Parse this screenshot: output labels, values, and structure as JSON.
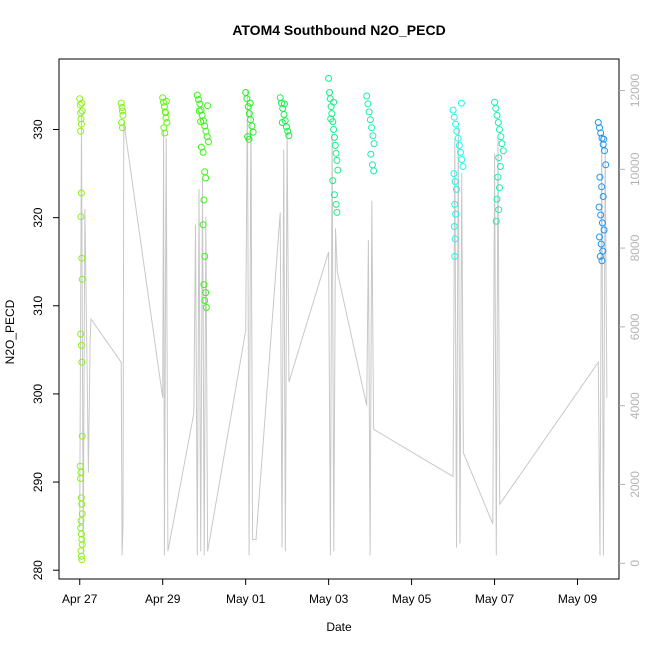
{
  "chart_data": {
    "type": "scatter",
    "title": "ATOM4 Southbound N2O_PECD",
    "xlabel": "Date",
    "ylabel": "N2O_PECD",
    "xlim": [
      "2016-04-26T12:00",
      "2016-05-10T00:00"
    ],
    "ylim": [
      279,
      338
    ],
    "y2lim": [
      -400,
      12800
    ],
    "x_ticks": [
      {
        "label": "Apr 27",
        "date": "2016-04-27T00:00"
      },
      {
        "label": "Apr 29",
        "date": "2016-04-29T00:00"
      },
      {
        "label": "May 01",
        "date": "2016-05-01T00:00"
      },
      {
        "label": "May 03",
        "date": "2016-05-03T00:00"
      },
      {
        "label": "May 05",
        "date": "2016-05-05T00:00"
      },
      {
        "label": "May 07",
        "date": "2016-05-07T00:00"
      },
      {
        "label": "May 09",
        "date": "2016-05-09T00:00"
      }
    ],
    "y_ticks": [
      280,
      290,
      300,
      310,
      320,
      330
    ],
    "y2_ticks": [
      0,
      2000,
      4000,
      6000,
      8000,
      10000,
      12000
    ],
    "grid": false,
    "legend": "none",
    "series": [
      {
        "date": "2016-04-27T00:00",
        "color": "#8ef01c",
        "points": [
          [
            0.0,
            333.5
          ],
          [
            0.01,
            332.8
          ],
          [
            0.02,
            331.9
          ],
          [
            0.03,
            331.2
          ],
          [
            0.04,
            330.6
          ],
          [
            0.05,
            333.0
          ],
          [
            0.06,
            332.1
          ],
          [
            0.02,
            329.8
          ],
          [
            0.04,
            322.8
          ],
          [
            0.03,
            320.1
          ],
          [
            0.05,
            315.4
          ],
          [
            0.06,
            313.0
          ],
          [
            0.02,
            306.8
          ],
          [
            0.04,
            305.5
          ],
          [
            0.05,
            303.6
          ],
          [
            0.06,
            295.2
          ],
          [
            0.01,
            291.8
          ],
          [
            0.03,
            291.1
          ],
          [
            0.02,
            290.4
          ],
          [
            0.04,
            288.2
          ],
          [
            0.05,
            287.5
          ],
          [
            0.06,
            286.4
          ],
          [
            0.03,
            285.6
          ],
          [
            0.02,
            284.8
          ],
          [
            0.04,
            284.1
          ],
          [
            0.05,
            283.5
          ],
          [
            0.06,
            282.9
          ],
          [
            0.03,
            282.2
          ],
          [
            0.04,
            281.6
          ],
          [
            0.05,
            281.2
          ]
        ]
      },
      {
        "date": "2016-04-28T00:00",
        "color": "#80f21a",
        "points": [
          [
            0.0,
            333.0
          ],
          [
            0.02,
            332.5
          ],
          [
            0.03,
            332.1
          ],
          [
            0.04,
            331.6
          ],
          [
            0.01,
            330.8
          ],
          [
            0.03,
            330.2
          ]
        ]
      },
      {
        "date": "2016-04-29T00:00",
        "color": "#66f41a",
        "points": [
          [
            0.0,
            333.6
          ],
          [
            0.02,
            333.1
          ],
          [
            0.04,
            332.6
          ],
          [
            0.06,
            332.0
          ],
          [
            0.08,
            331.3
          ],
          [
            0.1,
            330.8
          ],
          [
            0.03,
            330.2
          ],
          [
            0.05,
            329.6
          ],
          [
            0.07,
            331.9
          ],
          [
            0.09,
            333.2
          ]
        ]
      },
      {
        "date": "2016-04-29T20:00",
        "color": "#3cf418",
        "points": [
          [
            0.0,
            333.9
          ],
          [
            0.03,
            333.4
          ],
          [
            0.06,
            332.9
          ],
          [
            0.09,
            332.2
          ],
          [
            0.12,
            331.6
          ],
          [
            0.15,
            331.0
          ],
          [
            0.18,
            330.4
          ],
          [
            0.21,
            329.8
          ],
          [
            0.24,
            329.2
          ],
          [
            0.27,
            328.6
          ],
          [
            0.1,
            328.0
          ],
          [
            0.14,
            327.4
          ],
          [
            0.18,
            325.2
          ],
          [
            0.2,
            324.5
          ],
          [
            0.16,
            322.0
          ],
          [
            0.14,
            319.2
          ],
          [
            0.18,
            315.6
          ],
          [
            0.16,
            312.4
          ],
          [
            0.2,
            311.5
          ],
          [
            0.18,
            310.6
          ],
          [
            0.22,
            309.8
          ],
          [
            0.25,
            332.7
          ],
          [
            0.05,
            332.1
          ],
          [
            0.08,
            330.9
          ]
        ]
      },
      {
        "date": "2016-05-01T00:00",
        "color": "#22f226",
        "points": [
          [
            0.0,
            334.2
          ],
          [
            0.03,
            333.5
          ],
          [
            0.06,
            332.6
          ],
          [
            0.09,
            331.8
          ],
          [
            0.12,
            331.1
          ],
          [
            0.15,
            330.4
          ],
          [
            0.18,
            329.7
          ],
          [
            0.05,
            329.2
          ],
          [
            0.08,
            328.9
          ],
          [
            0.11,
            333.0
          ]
        ]
      },
      {
        "date": "2016-05-01T20:00",
        "color": "#18f04a",
        "points": [
          [
            0.0,
            333.6
          ],
          [
            0.03,
            333.0
          ],
          [
            0.06,
            332.4
          ],
          [
            0.09,
            331.7
          ],
          [
            0.12,
            331.0
          ],
          [
            0.15,
            330.3
          ],
          [
            0.18,
            329.8
          ],
          [
            0.21,
            329.3
          ],
          [
            0.05,
            330.8
          ],
          [
            0.1,
            332.9
          ]
        ]
      },
      {
        "date": "2016-05-03T00:00",
        "color": "#16f086",
        "points": [
          [
            0.0,
            335.8
          ],
          [
            0.02,
            334.2
          ],
          [
            0.04,
            333.5
          ],
          [
            0.06,
            332.6
          ],
          [
            0.08,
            331.8
          ],
          [
            0.1,
            330.9
          ],
          [
            0.12,
            330.0
          ],
          [
            0.14,
            329.1
          ],
          [
            0.16,
            328.2
          ],
          [
            0.18,
            327.3
          ],
          [
            0.2,
            326.5
          ],
          [
            0.22,
            325.4
          ],
          [
            0.1,
            324.2
          ],
          [
            0.14,
            322.6
          ],
          [
            0.18,
            321.5
          ],
          [
            0.2,
            320.6
          ],
          [
            0.05,
            331.2
          ],
          [
            0.12,
            333.1
          ]
        ]
      },
      {
        "date": "2016-05-03T22:00",
        "color": "#18f0a6",
        "points": [
          [
            0.0,
            333.8
          ],
          [
            0.03,
            332.9
          ],
          [
            0.06,
            332.0
          ],
          [
            0.09,
            331.1
          ],
          [
            0.12,
            330.2
          ],
          [
            0.15,
            329.3
          ],
          [
            0.18,
            328.4
          ],
          [
            0.1,
            327.2
          ],
          [
            0.14,
            326.0
          ],
          [
            0.17,
            325.3
          ]
        ]
      },
      {
        "date": "2016-05-06T00:00",
        "color": "#1cf8ee",
        "points": [
          [
            0.0,
            332.2
          ],
          [
            0.03,
            331.4
          ],
          [
            0.06,
            330.6
          ],
          [
            0.09,
            329.8
          ],
          [
            0.12,
            329.0
          ],
          [
            0.15,
            328.2
          ],
          [
            0.18,
            327.4
          ],
          [
            0.21,
            326.6
          ],
          [
            0.24,
            325.8
          ],
          [
            0.02,
            325.0
          ],
          [
            0.05,
            324.1
          ],
          [
            0.08,
            323.2
          ],
          [
            0.04,
            321.5
          ],
          [
            0.06,
            320.4
          ],
          [
            0.03,
            319.0
          ],
          [
            0.05,
            317.6
          ],
          [
            0.04,
            315.6
          ],
          [
            0.2,
            333.0
          ]
        ]
      },
      {
        "date": "2016-05-07T00:00",
        "color": "#18f0b0",
        "points": [
          [
            0.0,
            333.1
          ],
          [
            0.03,
            332.4
          ],
          [
            0.06,
            331.6
          ],
          [
            0.09,
            330.8
          ],
          [
            0.12,
            330.0
          ],
          [
            0.15,
            329.2
          ],
          [
            0.18,
            328.4
          ],
          [
            0.21,
            327.6
          ],
          [
            0.1,
            326.8
          ],
          [
            0.14,
            325.8
          ],
          [
            0.08,
            324.6
          ],
          [
            0.12,
            323.4
          ],
          [
            0.06,
            322.1
          ],
          [
            0.1,
            320.9
          ],
          [
            0.04,
            319.6
          ]
        ]
      },
      {
        "date": "2016-05-09T12:00",
        "color": "#1e96f0",
        "points": [
          [
            0.0,
            330.8
          ],
          [
            0.03,
            330.2
          ],
          [
            0.06,
            329.6
          ],
          [
            0.09,
            329.0
          ],
          [
            0.12,
            328.3
          ],
          [
            0.15,
            327.6
          ],
          [
            0.18,
            326.0
          ],
          [
            0.04,
            324.6
          ],
          [
            0.08,
            323.5
          ],
          [
            0.12,
            322.4
          ],
          [
            0.02,
            321.2
          ],
          [
            0.06,
            320.3
          ],
          [
            0.1,
            319.4
          ],
          [
            0.14,
            318.6
          ],
          [
            0.03,
            317.8
          ],
          [
            0.07,
            317.0
          ],
          [
            0.11,
            316.2
          ],
          [
            0.05,
            315.6
          ],
          [
            0.09,
            315.1
          ],
          [
            0.13,
            328.9
          ]
        ]
      }
    ],
    "secondary_line": {
      "color": "#c8c8c8",
      "points": [
        [
          "2016-04-27T00:00",
          900
        ],
        [
          "2016-04-27T01:00",
          11400
        ],
        [
          "2016-04-27T02:00",
          300
        ],
        [
          "2016-04-27T03:00",
          9000
        ],
        [
          "2016-04-27T04:00",
          5700
        ],
        [
          "2016-04-27T05:00",
          2300
        ],
        [
          "2016-04-27T06:00",
          5600
        ],
        [
          "2016-04-27T06:30",
          6200
        ],
        [
          "2016-04-28T00:00",
          5100
        ],
        [
          "2016-04-28T00:30",
          200
        ],
        [
          "2016-04-28T01:00",
          1000
        ],
        [
          "2016-04-28T01:30",
          11200
        ],
        [
          "2016-04-29T00:00",
          4200
        ],
        [
          "2016-04-29T00:30",
          11000
        ],
        [
          "2016-04-29T01:00",
          200
        ],
        [
          "2016-04-29T02:00",
          10800
        ],
        [
          "2016-04-29T03:00",
          300
        ],
        [
          "2016-04-29T18:00",
          3800
        ],
        [
          "2016-04-29T19:00",
          8600
        ],
        [
          "2016-04-29T20:00",
          200
        ],
        [
          "2016-04-29T21:00",
          9500
        ],
        [
          "2016-04-29T22:00",
          300
        ],
        [
          "2016-04-29T23:00",
          9800
        ],
        [
          "2016-04-30T00:00",
          200
        ],
        [
          "2016-04-30T01:00",
          8800
        ],
        [
          "2016-04-30T02:00",
          300
        ],
        [
          "2016-05-01T00:00",
          5900
        ],
        [
          "2016-05-01T01:00",
          12000
        ],
        [
          "2016-05-01T02:00",
          200
        ],
        [
          "2016-05-01T03:00",
          11600
        ],
        [
          "2016-05-01T04:00",
          600
        ],
        [
          "2016-05-01T06:00",
          600
        ],
        [
          "2016-05-01T20:00",
          8900
        ],
        [
          "2016-05-01T21:00",
          400
        ],
        [
          "2016-05-01T22:00",
          10500
        ],
        [
          "2016-05-01T23:00",
          300
        ],
        [
          "2016-05-02T00:00",
          11000
        ],
        [
          "2016-05-02T01:00",
          4600
        ],
        [
          "2016-05-03T00:00",
          7900
        ],
        [
          "2016-05-03T01:00",
          200
        ],
        [
          "2016-05-03T02:00",
          10900
        ],
        [
          "2016-05-03T03:00",
          300
        ],
        [
          "2016-05-03T04:00",
          8500
        ],
        [
          "2016-05-03T05:00",
          7400
        ],
        [
          "2016-05-03T22:00",
          4000
        ],
        [
          "2016-05-03T23:00",
          8200
        ],
        [
          "2016-05-04T00:00",
          200
        ],
        [
          "2016-05-04T01:00",
          9200
        ],
        [
          "2016-05-04T02:00",
          3400
        ],
        [
          "2016-05-06T00:00",
          2200
        ],
        [
          "2016-05-06T01:00",
          10800
        ],
        [
          "2016-05-06T02:00",
          400
        ],
        [
          "2016-05-06T03:00",
          11100
        ],
        [
          "2016-05-06T04:00",
          500
        ],
        [
          "2016-05-06T05:00",
          9900
        ],
        [
          "2016-05-06T06:00",
          2800
        ],
        [
          "2016-05-06T23:00",
          1000
        ],
        [
          "2016-05-07T00:00",
          10400
        ],
        [
          "2016-05-07T01:00",
          200
        ],
        [
          "2016-05-07T02:00",
          10800
        ],
        [
          "2016-05-07T03:00",
          1500
        ],
        [
          "2016-05-09T12:00",
          5100
        ],
        [
          "2016-05-09T13:00",
          200
        ],
        [
          "2016-05-09T14:00",
          10900
        ],
        [
          "2016-05-09T15:00",
          200
        ],
        [
          "2016-05-09T16:00",
          10600
        ],
        [
          "2016-05-09T17:00",
          4200
        ]
      ]
    }
  }
}
